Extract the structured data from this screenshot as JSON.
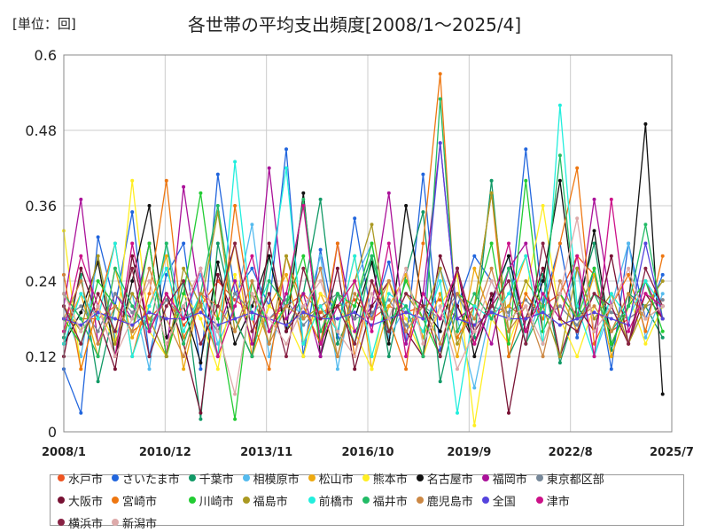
{
  "unit_label": "[単位：回]",
  "chart_data": {
    "type": "line",
    "title": "各世帯の平均支出頻度[2008/1～2025/4]",
    "unit": "[単位：回]",
    "x_range": [
      "2008/1",
      "2025/7"
    ],
    "x_ticks": [
      "2008/1",
      "2010/12",
      "2013/11",
      "2016/10",
      "2019/9",
      "2022/8",
      "2025/7"
    ],
    "y_ticks": [
      "0",
      "0.12",
      "0.24",
      "0.36",
      "0.48",
      "0.6"
    ],
    "ylim": [
      0,
      0.6
    ],
    "grid": true,
    "legend_position": "bottom",
    "series": [
      {
        "name": "水戸市",
        "color": "#ee5522",
        "values": [
          0.22,
          0.18,
          0.18,
          0.2,
          0.16,
          0.18,
          0.21,
          0.17,
          0.2,
          0.24,
          0.21,
          0.19,
          0.18,
          0.2,
          0.22,
          0.19,
          0.2,
          0.21,
          0.18,
          0.2,
          0.19,
          0.2,
          0.21,
          0.18,
          0.17,
          0.19,
          0.2,
          0.18,
          0.2,
          0.22,
          0.28,
          0.25,
          0.16,
          0.18,
          0.2,
          0.21
        ]
      },
      {
        "name": "さいたま市",
        "color": "#2266dd",
        "values": [
          0.1,
          0.03,
          0.31,
          0.2,
          0.35,
          0.12,
          0.25,
          0.3,
          0.1,
          0.41,
          0.22,
          0.26,
          0.2,
          0.45,
          0.12,
          0.29,
          0.15,
          0.34,
          0.18,
          0.27,
          0.14,
          0.41,
          0.13,
          0.2,
          0.28,
          0.24,
          0.18,
          0.45,
          0.2,
          0.3,
          0.15,
          0.26,
          0.1,
          0.3,
          0.18,
          0.25
        ]
      },
      {
        "name": "千葉市",
        "color": "#119966",
        "values": [
          0.15,
          0.25,
          0.08,
          0.2,
          0.18,
          0.3,
          0.12,
          0.24,
          0.02,
          0.3,
          0.18,
          0.12,
          0.28,
          0.16,
          0.22,
          0.37,
          0.14,
          0.2,
          0.28,
          0.12,
          0.25,
          0.35,
          0.08,
          0.2,
          0.15,
          0.4,
          0.12,
          0.18,
          0.25,
          0.11,
          0.2,
          0.3,
          0.13,
          0.22,
          0.2,
          0.15
        ]
      },
      {
        "name": "相模原市",
        "color": "#55bbee",
        "values": [
          0.2,
          0.12,
          0.28,
          0.15,
          0.22,
          0.1,
          0.3,
          0.18,
          0.25,
          0.14,
          0.2,
          0.33,
          0.12,
          0.22,
          0.18,
          0.28,
          0.1,
          0.24,
          0.3,
          0.15,
          0.2,
          0.12,
          0.26,
          0.18,
          0.07,
          0.2,
          0.28,
          0.14,
          0.22,
          0.18,
          0.26,
          0.12,
          0.2,
          0.3,
          0.15,
          0.22
        ]
      },
      {
        "name": "松山市",
        "color": "#eeaa11",
        "values": [
          0.16,
          0.22,
          0.12,
          0.26,
          0.15,
          0.2,
          0.28,
          0.1,
          0.22,
          0.18,
          0.3,
          0.12,
          0.2,
          0.25,
          0.14,
          0.22,
          0.16,
          0.28,
          0.1,
          0.2,
          0.25,
          0.15,
          0.22,
          0.12,
          0.26,
          0.18,
          0.2,
          0.28,
          0.14,
          0.22,
          0.16,
          0.25,
          0.12,
          0.2,
          0.24,
          0.18
        ]
      },
      {
        "name": "熊本市",
        "color": "#ffee22",
        "values": [
          0.32,
          0.1,
          0.2,
          0.14,
          0.4,
          0.16,
          0.12,
          0.22,
          0.18,
          0.1,
          0.25,
          0.14,
          0.2,
          0.18,
          0.12,
          0.22,
          0.2,
          0.16,
          0.1,
          0.24,
          0.18,
          0.12,
          0.2,
          0.25,
          0.01,
          0.18,
          0.14,
          0.22,
          0.36,
          0.18,
          0.12,
          0.2,
          0.16,
          0.22,
          0.14,
          0.2
        ]
      },
      {
        "name": "名古屋市",
        "color": "#111111",
        "values": [
          0.14,
          0.19,
          0.27,
          0.12,
          0.24,
          0.36,
          0.15,
          0.2,
          0.11,
          0.27,
          0.14,
          0.2,
          0.28,
          0.16,
          0.38,
          0.12,
          0.22,
          0.18,
          0.27,
          0.14,
          0.36,
          0.2,
          0.16,
          0.26,
          0.12,
          0.21,
          0.28,
          0.16,
          0.24,
          0.4,
          0.18,
          0.32,
          0.14,
          0.2,
          0.49,
          0.06
        ]
      },
      {
        "name": "福岡市",
        "color": "#aa1199",
        "values": [
          0.2,
          0.37,
          0.14,
          0.22,
          0.18,
          0.3,
          0.12,
          0.39,
          0.2,
          0.16,
          0.24,
          0.14,
          0.42,
          0.18,
          0.22,
          0.12,
          0.3,
          0.16,
          0.2,
          0.38,
          0.14,
          0.22,
          0.46,
          0.18,
          0.2,
          0.14,
          0.26,
          0.3,
          0.16,
          0.22,
          0.18,
          0.37,
          0.2,
          0.14,
          0.24,
          0.18
        ]
      },
      {
        "name": "東京都区部",
        "color": "#778899",
        "values": [
          0.18,
          0.2,
          0.16,
          0.22,
          0.19,
          0.17,
          0.21,
          0.18,
          0.2,
          0.16,
          0.22,
          0.19,
          0.18,
          0.21,
          0.17,
          0.2,
          0.22,
          0.18,
          0.19,
          0.21,
          0.17,
          0.2,
          0.18,
          0.22,
          0.16,
          0.2,
          0.19,
          0.21,
          0.18,
          0.2,
          0.17,
          0.22,
          0.19,
          0.18,
          0.2,
          0.21
        ]
      },
      {
        "name": "大阪市",
        "color": "#771133",
        "values": [
          0.12,
          0.26,
          0.18,
          0.1,
          0.28,
          0.16,
          0.22,
          0.14,
          0.03,
          0.25,
          0.18,
          0.12,
          0.3,
          0.16,
          0.2,
          0.14,
          0.26,
          0.1,
          0.2,
          0.24,
          0.16,
          0.12,
          0.28,
          0.2,
          0.14,
          0.22,
          0.03,
          0.18,
          0.26,
          0.12,
          0.2,
          0.16,
          0.28,
          0.14,
          0.22,
          0.18
        ]
      },
      {
        "name": "宮崎市",
        "color": "#ee7711",
        "values": [
          0.25,
          0.1,
          0.2,
          0.3,
          0.12,
          0.22,
          0.4,
          0.15,
          0.2,
          0.12,
          0.36,
          0.18,
          0.1,
          0.28,
          0.2,
          0.14,
          0.3,
          0.12,
          0.24,
          0.18,
          0.1,
          0.3,
          0.57,
          0.15,
          0.2,
          0.38,
          0.12,
          0.22,
          0.18,
          0.3,
          0.42,
          0.14,
          0.2,
          0.25,
          0.16,
          0.28
        ]
      },
      {
        "name": "川崎市",
        "color": "#22cc33",
        "values": [
          0.18,
          0.14,
          0.24,
          0.2,
          0.16,
          0.3,
          0.12,
          0.22,
          0.38,
          0.18,
          0.02,
          0.24,
          0.16,
          0.2,
          0.28,
          0.14,
          0.22,
          0.2,
          0.3,
          0.16,
          0.24,
          0.18,
          0.12,
          0.22,
          0.2,
          0.3,
          0.14,
          0.4,
          0.16,
          0.22,
          0.18,
          0.26,
          0.14,
          0.2,
          0.24,
          0.16
        ]
      },
      {
        "name": "福島市",
        "color": "#aa9922",
        "values": [
          0.2,
          0.16,
          0.28,
          0.14,
          0.22,
          0.18,
          0.12,
          0.26,
          0.2,
          0.35,
          0.16,
          0.22,
          0.14,
          0.28,
          0.18,
          0.2,
          0.12,
          0.24,
          0.33,
          0.16,
          0.22,
          0.18,
          0.26,
          0.14,
          0.2,
          0.38,
          0.16,
          0.24,
          0.2,
          0.12,
          0.26,
          0.18,
          0.22,
          0.14,
          0.2,
          0.24
        ]
      },
      {
        "name": "前橋市",
        "color": "#22eedd",
        "values": [
          0.14,
          0.22,
          0.18,
          0.3,
          0.12,
          0.2,
          0.26,
          0.16,
          0.22,
          0.12,
          0.43,
          0.18,
          0.24,
          0.42,
          0.14,
          0.2,
          0.16,
          0.28,
          0.12,
          0.22,
          0.2,
          0.16,
          0.24,
          0.03,
          0.2,
          0.18,
          0.22,
          0.28,
          0.14,
          0.52,
          0.2,
          0.12,
          0.22,
          0.18,
          0.24,
          0.2
        ]
      },
      {
        "name": "福井市",
        "color": "#22bb66",
        "values": [
          0.22,
          0.18,
          0.12,
          0.26,
          0.2,
          0.16,
          0.3,
          0.14,
          0.22,
          0.36,
          0.18,
          0.12,
          0.24,
          0.2,
          0.37,
          0.16,
          0.22,
          0.14,
          0.28,
          0.18,
          0.2,
          0.12,
          0.53,
          0.16,
          0.22,
          0.18,
          0.26,
          0.14,
          0.2,
          0.44,
          0.18,
          0.22,
          0.16,
          0.2,
          0.33,
          0.18
        ]
      },
      {
        "name": "鹿児島市",
        "color": "#cc8844",
        "values": [
          0.18,
          0.24,
          0.14,
          0.2,
          0.16,
          0.26,
          0.18,
          0.12,
          0.22,
          0.2,
          0.16,
          0.24,
          0.14,
          0.2,
          0.18,
          0.26,
          0.12,
          0.22,
          0.18,
          0.24,
          0.16,
          0.2,
          0.14,
          0.22,
          0.18,
          0.26,
          0.16,
          0.2,
          0.12,
          0.24,
          0.18,
          0.2,
          0.16,
          0.22,
          0.18,
          0.2
        ]
      },
      {
        "name": "全国",
        "color": "#5544dd",
        "values": [
          0.18,
          0.17,
          0.19,
          0.18,
          0.17,
          0.19,
          0.18,
          0.18,
          0.19,
          0.17,
          0.18,
          0.19,
          0.18,
          0.17,
          0.19,
          0.18,
          0.18,
          0.19,
          0.17,
          0.18,
          0.19,
          0.18,
          0.46,
          0.18,
          0.17,
          0.19,
          0.18,
          0.18,
          0.19,
          0.17,
          0.18,
          0.19,
          0.18,
          0.17,
          0.3,
          0.18
        ]
      },
      {
        "name": "津市",
        "color": "#cc1188",
        "values": [
          0.16,
          0.28,
          0.2,
          0.12,
          0.3,
          0.16,
          0.22,
          0.18,
          0.26,
          0.12,
          0.2,
          0.28,
          0.16,
          0.22,
          0.36,
          0.14,
          0.2,
          0.24,
          0.16,
          0.3,
          0.12,
          0.22,
          0.18,
          0.26,
          0.14,
          0.2,
          0.3,
          0.16,
          0.22,
          0.18,
          0.28,
          0.12,
          0.37,
          0.16,
          0.22,
          0.2
        ]
      },
      {
        "name": "横浜市",
        "color": "#882244",
        "values": [
          0.2,
          0.14,
          0.22,
          0.16,
          0.26,
          0.12,
          0.2,
          0.24,
          0.14,
          0.2,
          0.3,
          0.16,
          0.22,
          0.12,
          0.26,
          0.18,
          0.2,
          0.14,
          0.24,
          0.16,
          0.22,
          0.2,
          0.12,
          0.26,
          0.16,
          0.2,
          0.24,
          0.14,
          0.3,
          0.18,
          0.16,
          0.22,
          0.2,
          0.14,
          0.26,
          0.2
        ]
      },
      {
        "name": "新潟市",
        "color": "#ddaaaa",
        "values": [
          0.22,
          0.16,
          0.2,
          0.12,
          0.18,
          0.24,
          0.14,
          0.2,
          0.26,
          0.16,
          0.06,
          0.22,
          0.18,
          0.14,
          0.2,
          0.24,
          0.16,
          0.12,
          0.22,
          0.18,
          0.26,
          0.14,
          0.2,
          0.1,
          0.16,
          0.24,
          0.18,
          0.2,
          0.14,
          0.22,
          0.34,
          0.16,
          0.2,
          0.26,
          0.18,
          0.2
        ]
      }
    ]
  }
}
